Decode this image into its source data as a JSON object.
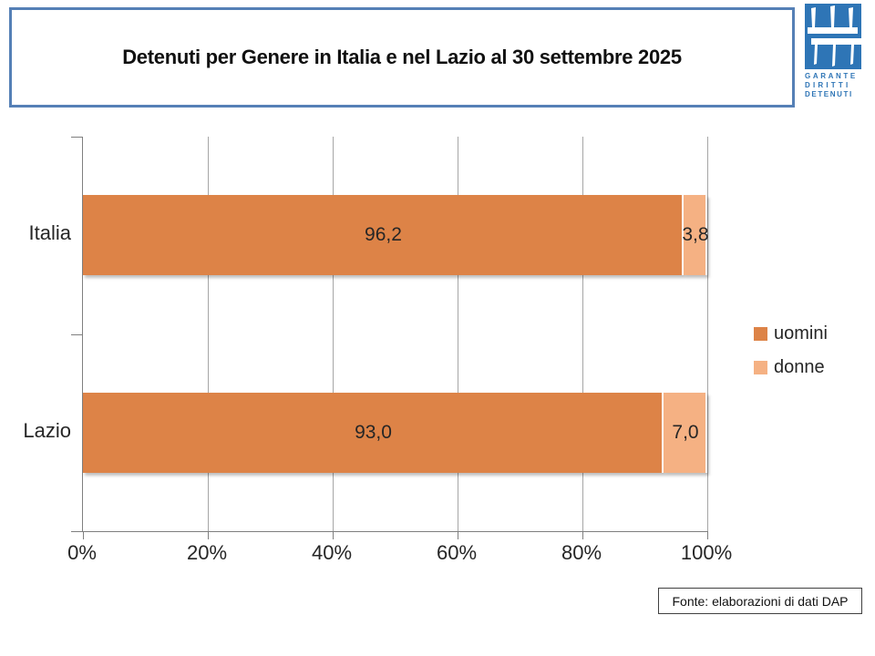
{
  "header": {
    "title": "Detenuti per Genere in Italia e nel Lazio al 30 settembre 2025"
  },
  "logo": {
    "lines": [
      "GARANTE",
      "DIRITTI",
      "DETENUTI"
    ],
    "color": "#2E75B6"
  },
  "footer": {
    "source": "Fonte: elaborazioni di dati DAP"
  },
  "chart_data": {
    "type": "bar",
    "orientation": "horizontal",
    "stacked": true,
    "grid": true,
    "legend_position": "right",
    "categories": [
      "Italia",
      "Lazio"
    ],
    "series": [
      {
        "name": "uomini",
        "color": "#DD8347",
        "values": [
          96.2,
          93.0
        ],
        "labels": [
          "96,2",
          "93,0"
        ]
      },
      {
        "name": "donne",
        "color": "#F5B183",
        "values": [
          3.8,
          7.0
        ],
        "labels": [
          "3,8",
          "7,0"
        ]
      }
    ],
    "xlim": [
      0,
      100
    ],
    "x_ticks": [
      "0%",
      "20%",
      "40%",
      "60%",
      "80%",
      "100%"
    ]
  }
}
